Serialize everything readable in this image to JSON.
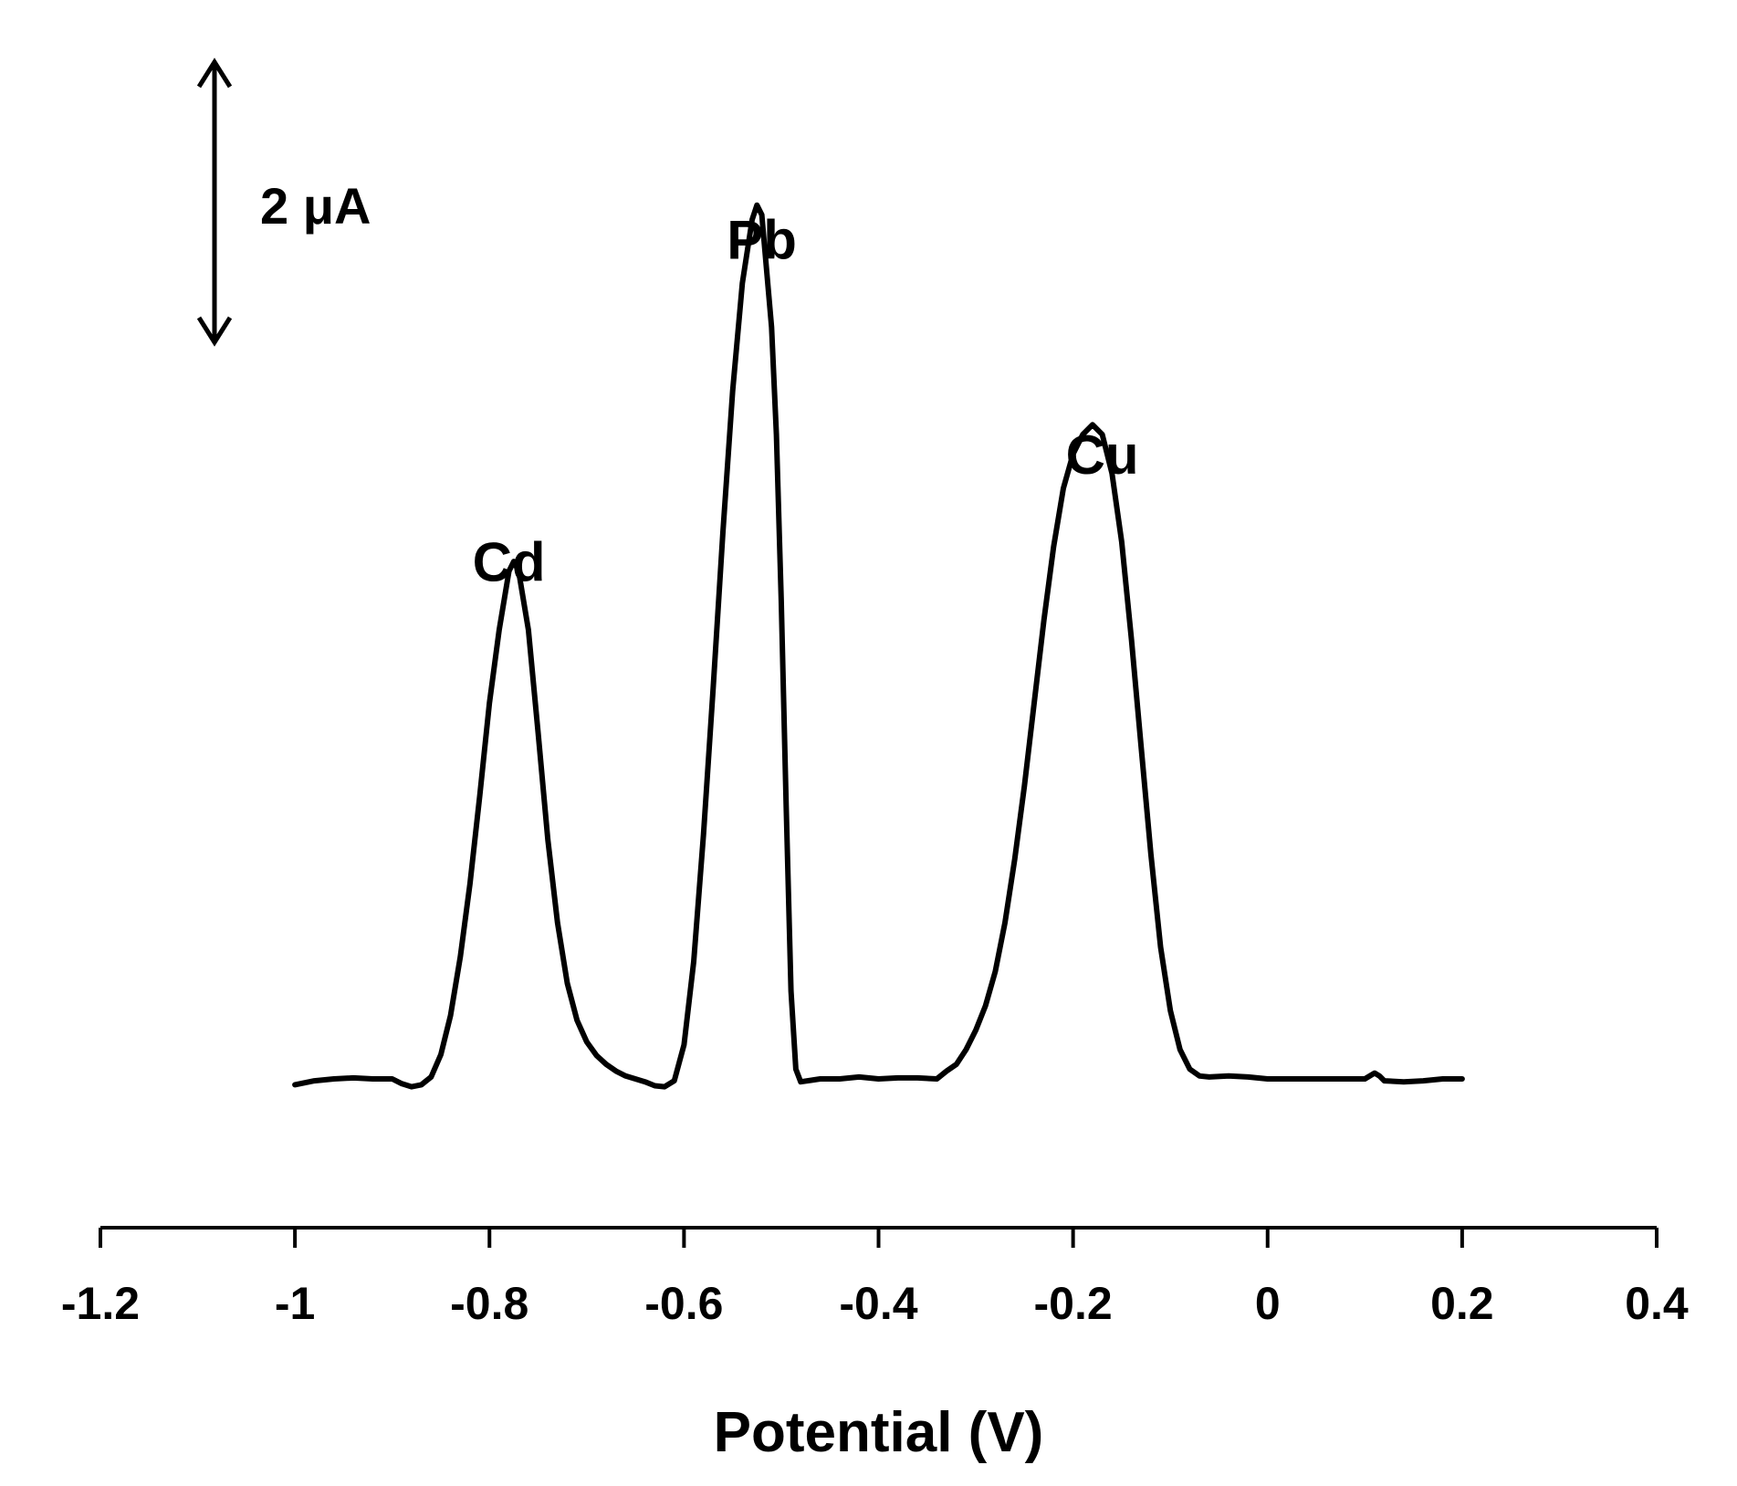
{
  "chart_data": {
    "type": "line",
    "xlabel": "Potential (V)",
    "ylabel": "",
    "xlim": [
      -1.2,
      0.4
    ],
    "x_ticks": [
      -1.2,
      -1.0,
      -0.8,
      -0.6,
      -0.4,
      -0.2,
      0.0,
      0.2,
      0.4
    ],
    "x_tick_labels": [
      "-1.2",
      "-1",
      "-0.8",
      "-0.6",
      "-0.4",
      "-0.2",
      "0",
      "0.2",
      "0.4"
    ],
    "ylim": [
      -0.5,
      10
    ],
    "grid": false,
    "scale_bar": {
      "label": "2 μA",
      "value": 2,
      "unit": "μA"
    },
    "peak_labels": [
      {
        "text": "Cd",
        "x": -0.78,
        "y": 5.1
      },
      {
        "text": "Pb",
        "x": -0.52,
        "y": 8.4
      },
      {
        "text": "Cu",
        "x": -0.17,
        "y": 6.2
      }
    ],
    "series": [
      {
        "points": [
          [
            -1.0,
            -0.06
          ],
          [
            -0.98,
            -0.02
          ],
          [
            -0.96,
            0.0
          ],
          [
            -0.94,
            0.01
          ],
          [
            -0.92,
            0.0
          ],
          [
            -0.9,
            0.0
          ],
          [
            -0.89,
            -0.05
          ],
          [
            -0.88,
            -0.08
          ],
          [
            -0.87,
            -0.06
          ],
          [
            -0.86,
            0.02
          ],
          [
            -0.85,
            0.25
          ],
          [
            -0.84,
            0.65
          ],
          [
            -0.83,
            1.25
          ],
          [
            -0.82,
            2.0
          ],
          [
            -0.81,
            2.9
          ],
          [
            -0.8,
            3.85
          ],
          [
            -0.79,
            4.6
          ],
          [
            -0.78,
            5.2
          ],
          [
            -0.775,
            5.3
          ],
          [
            -0.77,
            5.2
          ],
          [
            -0.76,
            4.6
          ],
          [
            -0.75,
            3.55
          ],
          [
            -0.74,
            2.45
          ],
          [
            -0.73,
            1.6
          ],
          [
            -0.72,
            0.98
          ],
          [
            -0.71,
            0.6
          ],
          [
            -0.7,
            0.38
          ],
          [
            -0.69,
            0.24
          ],
          [
            -0.68,
            0.15
          ],
          [
            -0.67,
            0.08
          ],
          [
            -0.66,
            0.03
          ],
          [
            -0.65,
            0.0
          ],
          [
            -0.64,
            -0.03
          ],
          [
            -0.63,
            -0.07
          ],
          [
            -0.62,
            -0.08
          ],
          [
            -0.61,
            -0.02
          ],
          [
            -0.6,
            0.35
          ],
          [
            -0.59,
            1.2
          ],
          [
            -0.58,
            2.5
          ],
          [
            -0.57,
            4.0
          ],
          [
            -0.56,
            5.6
          ],
          [
            -0.55,
            7.05
          ],
          [
            -0.54,
            8.15
          ],
          [
            -0.53,
            8.8
          ],
          [
            -0.525,
            8.95
          ],
          [
            -0.52,
            8.85
          ],
          [
            -0.51,
            7.7
          ],
          [
            -0.505,
            6.6
          ],
          [
            -0.5,
            4.9
          ],
          [
            -0.495,
            2.8
          ],
          [
            -0.49,
            0.9
          ],
          [
            -0.485,
            0.1
          ],
          [
            -0.48,
            -0.03
          ],
          [
            -0.46,
            0.0
          ],
          [
            -0.44,
            0.0
          ],
          [
            -0.42,
            0.02
          ],
          [
            -0.4,
            0.0
          ],
          [
            -0.38,
            0.01
          ],
          [
            -0.36,
            0.01
          ],
          [
            -0.34,
            0.0
          ],
          [
            -0.33,
            0.08
          ],
          [
            -0.32,
            0.15
          ],
          [
            -0.31,
            0.3
          ],
          [
            -0.3,
            0.5
          ],
          [
            -0.29,
            0.75
          ],
          [
            -0.28,
            1.1
          ],
          [
            -0.27,
            1.6
          ],
          [
            -0.26,
            2.25
          ],
          [
            -0.25,
            3.0
          ],
          [
            -0.24,
            3.85
          ],
          [
            -0.23,
            4.7
          ],
          [
            -0.22,
            5.45
          ],
          [
            -0.21,
            6.05
          ],
          [
            -0.2,
            6.4
          ],
          [
            -0.19,
            6.6
          ],
          [
            -0.18,
            6.7
          ],
          [
            -0.17,
            6.6
          ],
          [
            -0.16,
            6.2
          ],
          [
            -0.15,
            5.5
          ],
          [
            -0.14,
            4.5
          ],
          [
            -0.13,
            3.4
          ],
          [
            -0.12,
            2.3
          ],
          [
            -0.11,
            1.35
          ],
          [
            -0.1,
            0.7
          ],
          [
            -0.09,
            0.3
          ],
          [
            -0.08,
            0.1
          ],
          [
            -0.07,
            0.03
          ],
          [
            -0.06,
            0.02
          ],
          [
            -0.04,
            0.03
          ],
          [
            -0.02,
            0.02
          ],
          [
            0.0,
            0.0
          ],
          [
            0.02,
            0.0
          ],
          [
            0.04,
            0.0
          ],
          [
            0.06,
            0.0
          ],
          [
            0.08,
            0.0
          ],
          [
            0.1,
            0.0
          ],
          [
            0.11,
            0.06
          ],
          [
            0.115,
            0.03
          ],
          [
            0.12,
            -0.02
          ],
          [
            0.14,
            -0.03
          ],
          [
            0.16,
            -0.02
          ],
          [
            0.18,
            0.0
          ],
          [
            0.2,
            0.0
          ]
        ]
      }
    ]
  }
}
